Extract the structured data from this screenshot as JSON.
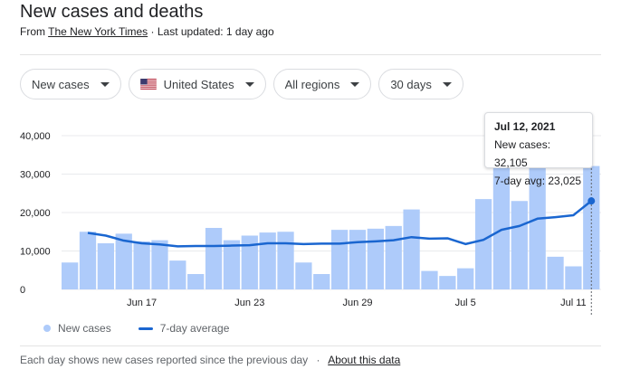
{
  "header": {
    "title": "New cases and deaths",
    "source_prefix": "From",
    "source_name": "The New York Times",
    "last_updated": "· Last updated: 1 day ago"
  },
  "filters": {
    "metric": "New cases",
    "country": "United States",
    "region": "All regions",
    "range": "30 days"
  },
  "tooltip": {
    "date": "Jul 12, 2021",
    "new_cases": "New cases: 32,105",
    "avg": "7-day avg: 23,025"
  },
  "legend": {
    "bars": "New cases",
    "line": "7-day average"
  },
  "footer": {
    "note": "Each day shows new cases reported since the previous day",
    "sep": "·",
    "link": "About this data"
  },
  "colors": {
    "bar": "#aecbfa",
    "line": "#1a66d0",
    "grid": "#e8eaed"
  },
  "chart_data": {
    "type": "bar",
    "title": "New cases",
    "ylim": [
      0,
      40000
    ],
    "y_ticks": [
      0,
      10000,
      20000,
      30000,
      40000
    ],
    "y_tick_labels": [
      "0",
      "10,000",
      "20,000",
      "30,000",
      "40,000"
    ],
    "x_ticks": [
      {
        "label": "Jun 17",
        "index": 4
      },
      {
        "label": "Jun 23",
        "index": 10
      },
      {
        "label": "Jun 29",
        "index": 16
      },
      {
        "label": "Jul 5",
        "index": 22
      },
      {
        "label": "Jul 11",
        "index": 28
      }
    ],
    "series": [
      {
        "name": "New cases",
        "values": [
          7000,
          15000,
          12000,
          14500,
          12500,
          12800,
          7500,
          4000,
          16000,
          12800,
          14000,
          14800,
          15000,
          7000,
          4000,
          15500,
          15500,
          15800,
          16500,
          20800,
          4800,
          3500,
          5500,
          23500,
          33000,
          23000,
          33000,
          8500,
          6000,
          32105
        ]
      },
      {
        "name": "7-day average",
        "values": [
          null,
          14700,
          14000,
          12700,
          12000,
          11700,
          11200,
          11300,
          11300,
          11400,
          11500,
          12000,
          12000,
          11800,
          11900,
          11900,
          12300,
          12500,
          12800,
          13600,
          13200,
          13300,
          11800,
          12900,
          15500,
          16500,
          18400,
          18800,
          19300,
          23025
        ]
      }
    ]
  }
}
